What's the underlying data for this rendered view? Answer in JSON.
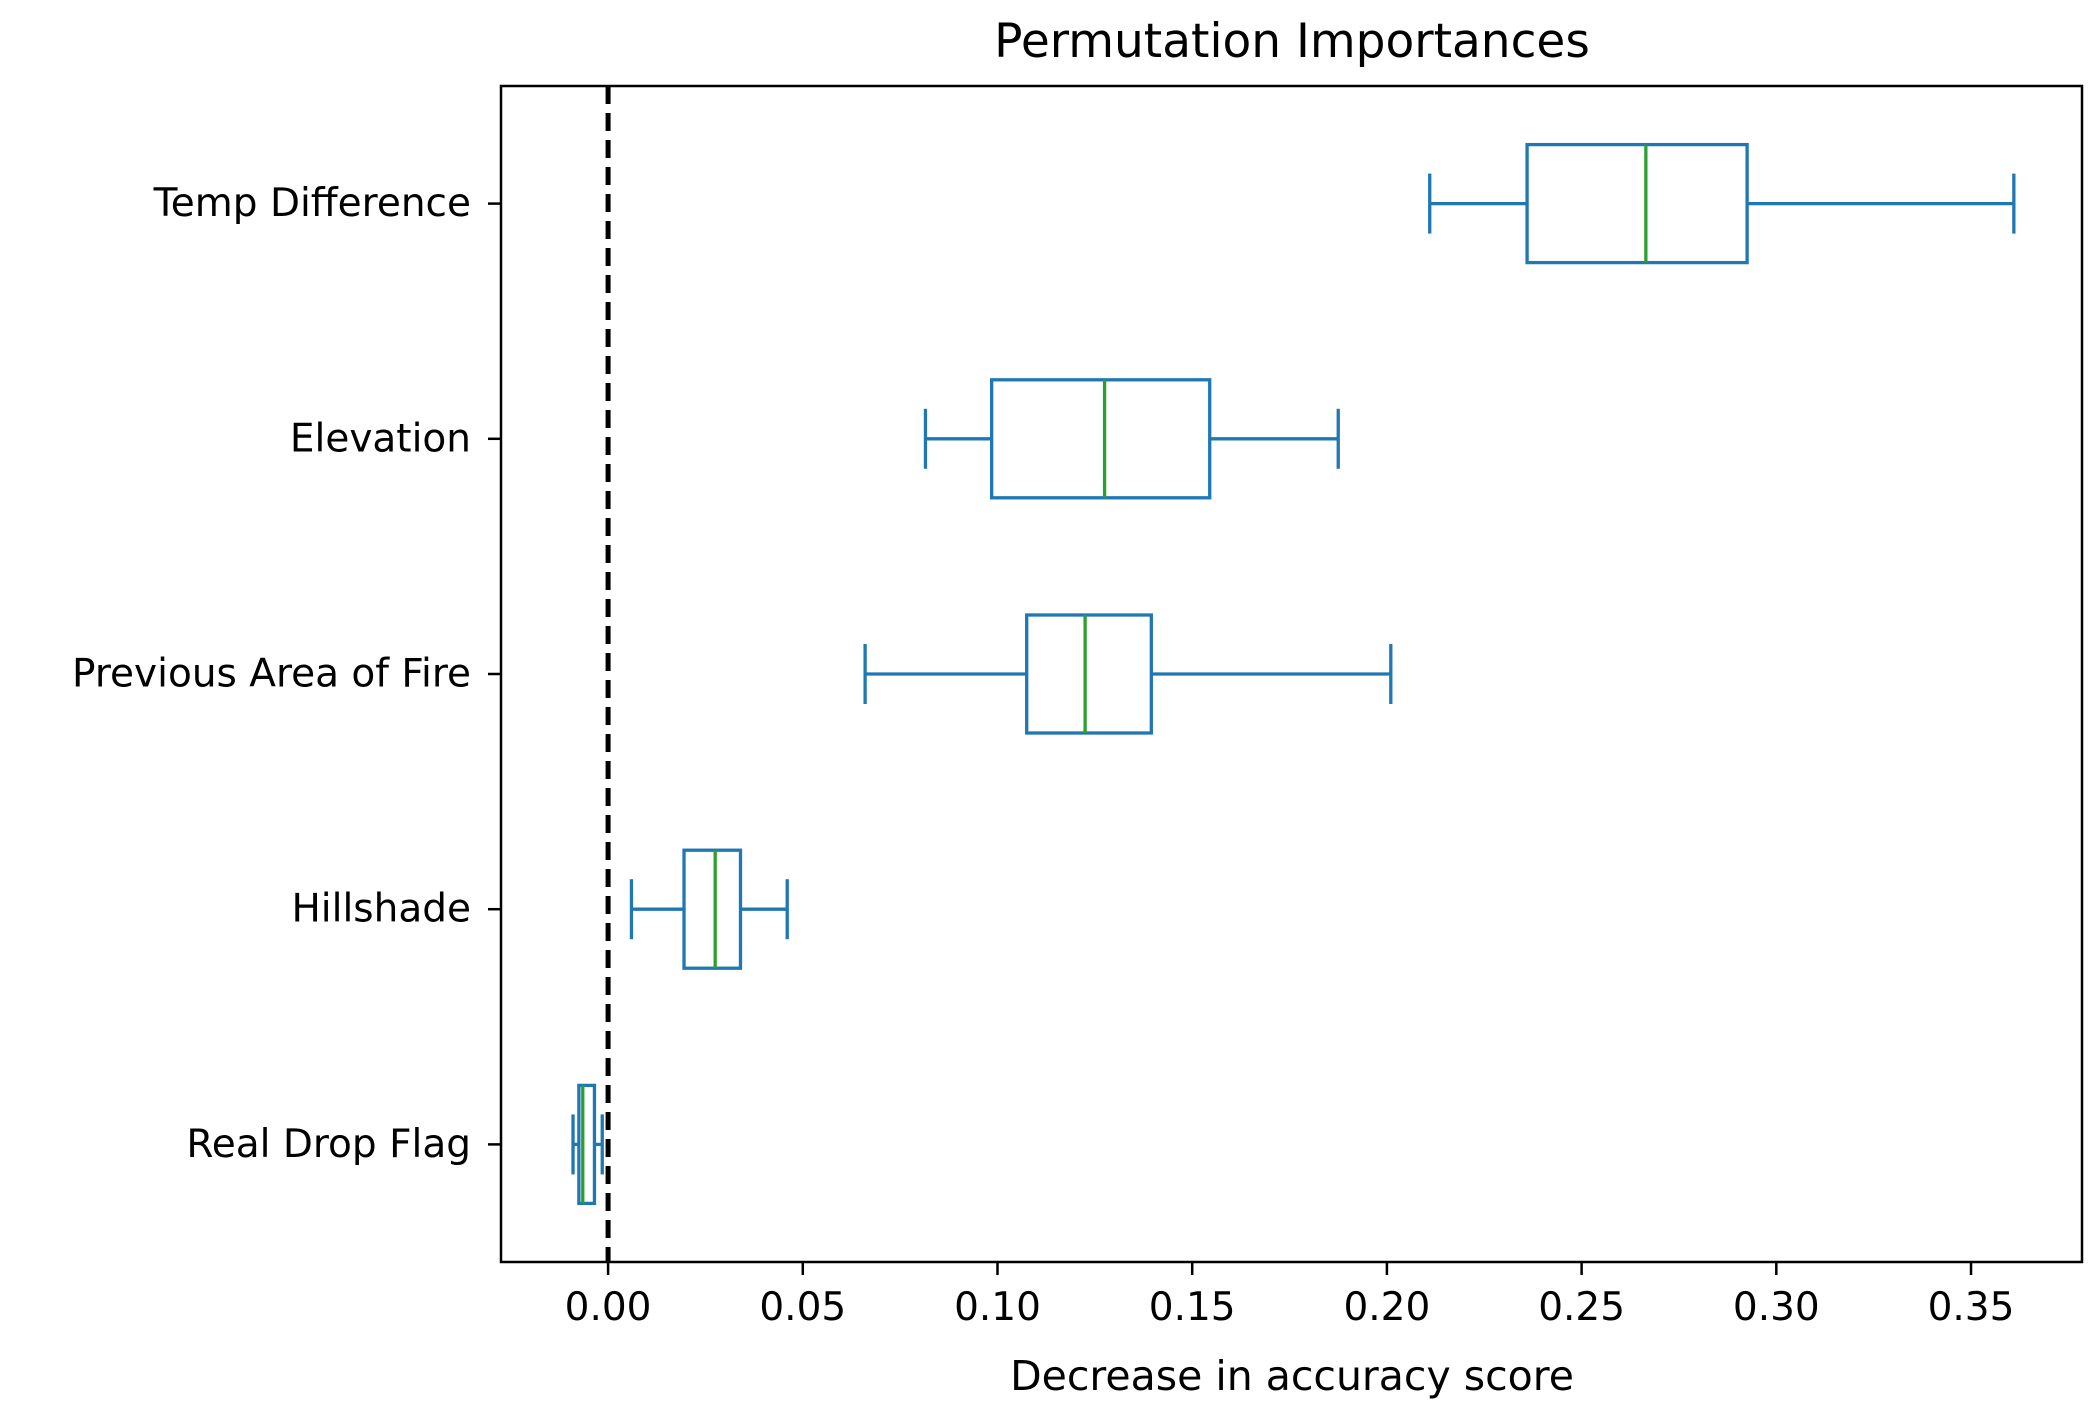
{
  "chart_data": {
    "type": "boxplot",
    "orientation": "horizontal",
    "title": "Permutation Importances",
    "xlabel": "Decrease in accuracy score",
    "ylabel": "",
    "xlim": [
      -0.0275,
      0.3785
    ],
    "xticks": [
      0.0,
      0.05,
      0.1,
      0.15,
      0.2,
      0.25,
      0.3,
      0.35
    ],
    "xtick_labels": [
      "0.00",
      "0.05",
      "0.10",
      "0.15",
      "0.20",
      "0.25",
      "0.30",
      "0.35"
    ],
    "reference_line": {
      "x": 0.0,
      "style": "dashed",
      "color": "#000000"
    },
    "colors": {
      "box": "#1f77b4",
      "median": "#2ca02c",
      "axis": "#000000"
    },
    "categories": [
      "Temp Difference",
      "Elevation",
      "Previous Area of Fire",
      "Hillshade",
      "Real Drop Flag"
    ],
    "series": [
      {
        "name": "Temp Difference",
        "whisker_low": 0.211,
        "q1": 0.236,
        "median": 0.2665,
        "q3": 0.2925,
        "whisker_high": 0.361
      },
      {
        "name": "Elevation",
        "whisker_low": 0.0815,
        "q1": 0.0985,
        "median": 0.1275,
        "q3": 0.1545,
        "whisker_high": 0.1875
      },
      {
        "name": "Previous Area of Fire",
        "whisker_low": 0.066,
        "q1": 0.1075,
        "median": 0.1225,
        "q3": 0.1395,
        "whisker_high": 0.201
      },
      {
        "name": "Hillshade",
        "whisker_low": 0.006,
        "q1": 0.0195,
        "median": 0.0275,
        "q3": 0.034,
        "whisker_high": 0.046
      },
      {
        "name": "Real Drop Flag",
        "whisker_low": -0.009,
        "q1": -0.0075,
        "median": -0.0065,
        "q3": -0.0035,
        "whisker_high": -0.0015
      }
    ]
  }
}
